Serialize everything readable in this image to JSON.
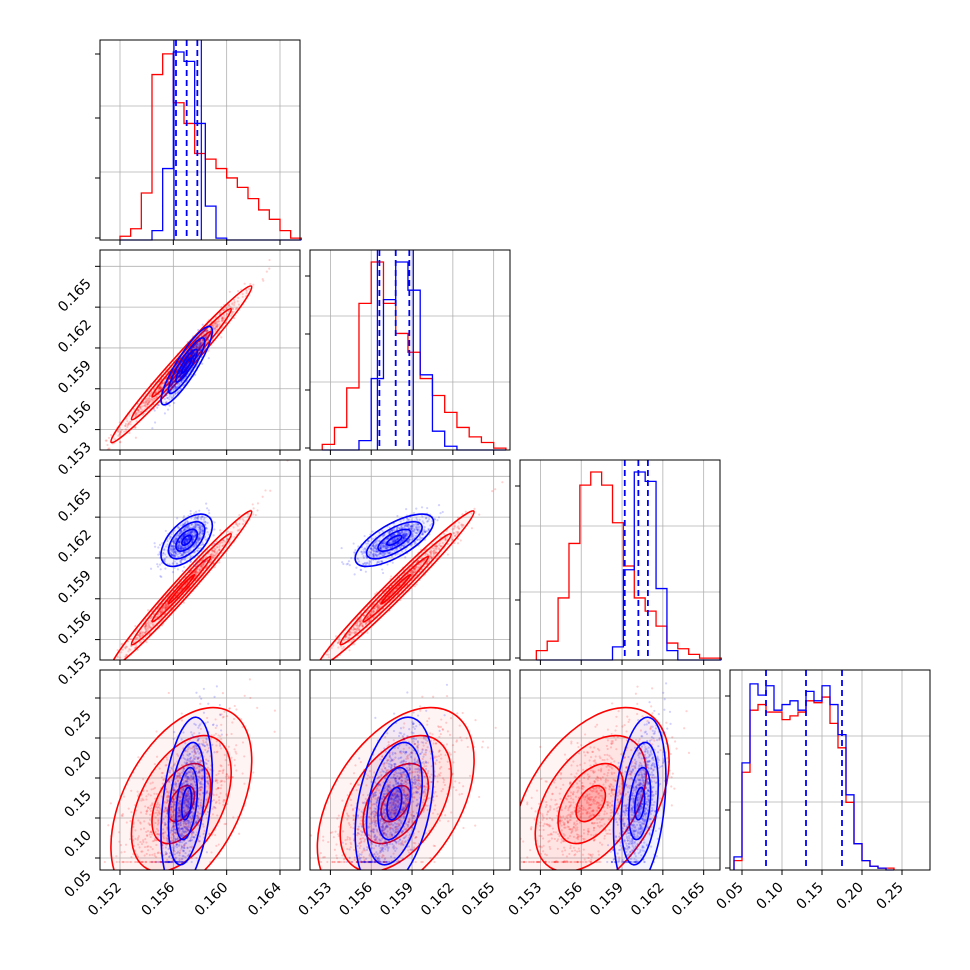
{
  "chart_data": {
    "type": "corner",
    "colors": {
      "blue": "#0000ff",
      "red": "#ff0000"
    },
    "grid": true,
    "parameters": [
      {
        "ticks": [
          "0.152",
          "0.156",
          "0.160",
          "0.164"
        ],
        "range": [
          0.1505,
          0.1655
        ]
      },
      {
        "ticks": [
          "0.153",
          "0.156",
          "0.159",
          "0.162",
          "0.165"
        ],
        "range": [
          0.1515,
          0.1662
        ]
      },
      {
        "ticks": [
          "0.153",
          "0.156",
          "0.159",
          "0.162",
          "0.165"
        ],
        "range": [
          0.1515,
          0.1662
        ]
      },
      {
        "ticks": [
          "0.05",
          "0.10",
          "0.15",
          "0.20",
          "0.25"
        ],
        "range": [
          0.035,
          0.285
        ]
      }
    ],
    "series": [
      {
        "color": "blue",
        "means": [
          0.157,
          0.1577,
          0.1603,
          0.118
        ],
        "sigmas": [
          0.0008,
          0.0012,
          0.0008,
          0.045
        ],
        "quantiles": [
          [
            0.1562,
            0.157,
            0.1578
          ],
          [
            0.1566,
            0.1578,
            0.1588
          ],
          [
            0.1592,
            0.1602,
            0.1609
          ],
          [
            0.08,
            0.13,
            0.175
          ]
        ]
      },
      {
        "color": "red",
        "means": [
          0.1566,
          0.1578,
          0.1567,
          0.118
        ],
        "sigmas": [
          0.0022,
          0.0024,
          0.0024,
          0.05
        ],
        "quantiles": [
          [],
          [],
          [],
          []
        ]
      }
    ],
    "histograms": [
      {
        "param": 0,
        "bin_edges": [
          0.152,
          0.1528,
          0.1536,
          0.1544,
          0.1552,
          0.156,
          0.1568,
          0.1576,
          0.1584,
          0.1592,
          0.16,
          0.1608,
          0.1616,
          0.1624,
          0.1632,
          0.164,
          0.1648,
          0.1656
        ],
        "blue": [
          0,
          0,
          0,
          0.05,
          0.38,
          1.0,
          0.95,
          0.62,
          0.18,
          0.01,
          0,
          0,
          0,
          0,
          0,
          0,
          0
        ],
        "red": [
          0.02,
          0.06,
          0.25,
          0.88,
          0.99,
          0.73,
          0.62,
          0.46,
          0.43,
          0.38,
          0.33,
          0.28,
          0.22,
          0.16,
          0.11,
          0.05,
          0.01
        ]
      },
      {
        "param": 1,
        "bin_edges": [
          0.1524,
          0.1533,
          0.1542,
          0.1551,
          0.156,
          0.1569,
          0.1578,
          0.1587,
          0.1596,
          0.1605,
          0.1614,
          0.1623,
          0.1632,
          0.1641,
          0.165,
          0.1659
        ],
        "blue": [
          0,
          0,
          0,
          0.05,
          0.38,
          0.8,
          1.0,
          0.85,
          0.4,
          0.1,
          0.02,
          0,
          0,
          0,
          0
        ],
        "red": [
          0.03,
          0.12,
          0.33,
          0.78,
          1.0,
          0.78,
          0.62,
          0.52,
          0.38,
          0.29,
          0.2,
          0.12,
          0.07,
          0.04,
          0.01
        ]
      },
      {
        "param": 2,
        "bin_edges": [
          0.1527,
          0.1535,
          0.1543,
          0.1551,
          0.1559,
          0.1567,
          0.1575,
          0.1583,
          0.1591,
          0.1599,
          0.1607,
          0.1615,
          0.1623,
          0.1631,
          0.1639,
          0.1647,
          0.1655,
          0.1663
        ],
        "blue": [
          0,
          0,
          0,
          0,
          0,
          0,
          0,
          0.07,
          0.48,
          1.0,
          0.95,
          0.38,
          0.05,
          0,
          0,
          0,
          0
        ],
        "red": [
          0.05,
          0.1,
          0.33,
          0.62,
          0.93,
          1.0,
          0.93,
          0.73,
          0.5,
          0.33,
          0.26,
          0.18,
          0.09,
          0.06,
          0.03,
          0.01,
          0.01
        ]
      },
      {
        "param": 3,
        "bin_edges": [
          0.04,
          0.05,
          0.06,
          0.07,
          0.08,
          0.09,
          0.1,
          0.11,
          0.12,
          0.13,
          0.14,
          0.15,
          0.16,
          0.17,
          0.18,
          0.19,
          0.2,
          0.21,
          0.22,
          0.23,
          0.24
        ],
        "blue": [
          0.07,
          0.57,
          0.99,
          0.93,
          0.98,
          0.85,
          0.88,
          0.9,
          0.85,
          0.95,
          0.9,
          0.98,
          0.88,
          0.72,
          0.4,
          0.14,
          0.05,
          0.02,
          0.01,
          0.0
        ],
        "red": [
          0.05,
          0.52,
          0.85,
          0.88,
          0.84,
          0.84,
          0.8,
          0.82,
          0.84,
          0.9,
          0.89,
          0.92,
          0.78,
          0.65,
          0.36,
          0.14,
          0.05,
          0.02,
          0.01,
          0.01
        ]
      }
    ]
  }
}
